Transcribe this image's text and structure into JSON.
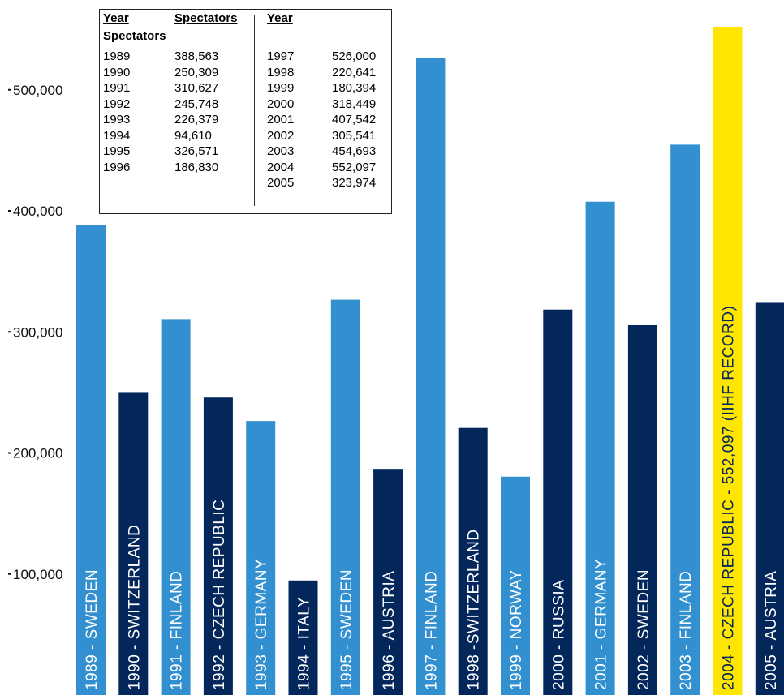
{
  "chart_data": {
    "type": "bar",
    "ylim": [
      0,
      575000
    ],
    "yticks": [
      100000,
      200000,
      300000,
      400000,
      500000
    ],
    "ytick_labels": [
      "100,000",
      "200,000",
      "300,000",
      "400,000",
      "500,000"
    ],
    "categories": [
      "1989 - SWEDEN",
      "1990 - SWITZERLAND",
      "1991 - FINLAND",
      "1992 - CZECH REPUBLIC",
      "1993 - GERMANY",
      "1994 - ITALY",
      "1995 - SWEDEN",
      "1996 - AUSTRIA",
      "1997 - FINLAND",
      "1998 -SWITZERLAND",
      "1999 - NORWAY",
      "2000 - RUSSIA",
      "2001 - GERMANY",
      "2002 - SWEDEN",
      "2003 - FINLAND",
      "2004 - CZECH REPUBLIC - 552,097 (IIHF RECORD)",
      "2005 - AUSTRIA"
    ],
    "values": [
      388563,
      250309,
      310627,
      245748,
      226379,
      94610,
      326571,
      186830,
      526000,
      220641,
      180394,
      318449,
      407542,
      305541,
      454693,
      552097,
      323974
    ],
    "bar_colors": [
      "#3290d0",
      "#03275a",
      "#3290d0",
      "#03275a",
      "#3290d0",
      "#03275a",
      "#3290d0",
      "#03275a",
      "#3290d0",
      "#03275a",
      "#3290d0",
      "#03275a",
      "#3290d0",
      "#03275a",
      "#3290d0",
      "#ffe600",
      "#03275a"
    ],
    "label_colors": [
      "#ffffff",
      "#ffffff",
      "#ffffff",
      "#ffffff",
      "#ffffff",
      "#ffffff",
      "#ffffff",
      "#ffffff",
      "#ffffff",
      "#ffffff",
      "#ffffff",
      "#ffffff",
      "#ffffff",
      "#ffffff",
      "#ffffff",
      "#03275a",
      "#ffffff"
    ]
  },
  "table": {
    "header_year": "Year",
    "header_spectators": "Spectators",
    "header_year_right": "Year",
    "header_spectators_wrapped": "Spectators",
    "left_rows": [
      {
        "year": "1989",
        "spectators": "388,563"
      },
      {
        "year": "1990",
        "spectators": "250,309"
      },
      {
        "year": "1991",
        "spectators": "310,627"
      },
      {
        "year": "1992",
        "spectators": "245,748"
      },
      {
        "year": "1993",
        "spectators": "226,379"
      },
      {
        "year": "1994",
        "spectators": "94,610"
      },
      {
        "year": "1995",
        "spectators": "326,571"
      },
      {
        "year": "1996",
        "spectators": "186,830"
      }
    ],
    "right_rows": [
      {
        "year": "1997",
        "spectators": "526,000"
      },
      {
        "year": "1998",
        "spectators": "220,641"
      },
      {
        "year": "1999",
        "spectators": "180,394"
      },
      {
        "year": "2000",
        "spectators": "318,449"
      },
      {
        "year": "2001",
        "spectators": "407,542"
      },
      {
        "year": "2002",
        "spectators": "305,541"
      },
      {
        "year": "2003",
        "spectators": "454,693"
      },
      {
        "year": "2004",
        "spectators": "552,097"
      },
      {
        "year": "2005",
        "spectators": "323,974"
      }
    ]
  }
}
